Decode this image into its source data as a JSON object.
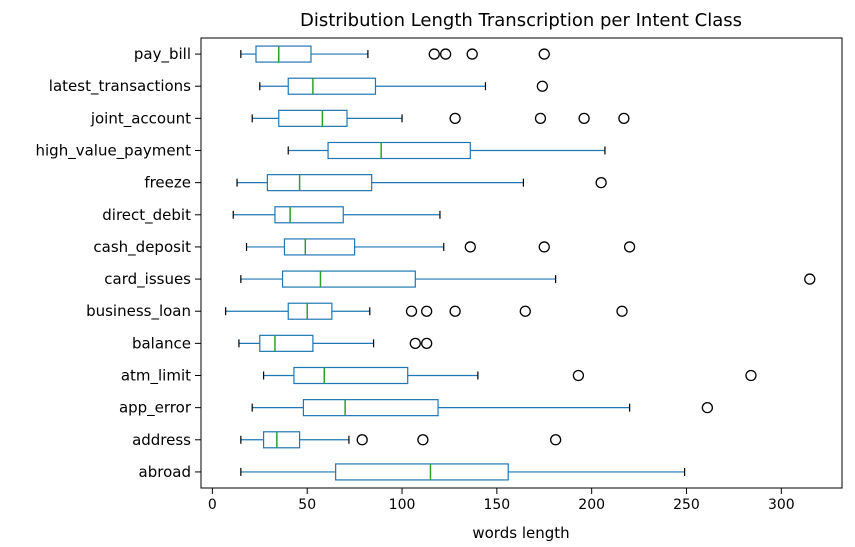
{
  "chart_data": {
    "type": "boxplot",
    "title": "Distribution  Length Transcription per Intent Class",
    "xlabel": "words length",
    "ylabel": "",
    "xlim": [
      -6,
      332
    ],
    "xticks": [
      0,
      50,
      100,
      150,
      200,
      250,
      300
    ],
    "grid": false,
    "categories": [
      "pay_bill",
      "latest_transactions",
      "joint_account",
      "high_value_payment",
      "freeze",
      "direct_debit",
      "cash_deposit",
      "card_issues",
      "business_loan",
      "balance",
      "atm_limit",
      "app_error",
      "address",
      "abroad"
    ],
    "boxes": [
      {
        "label": "pay_bill",
        "whisker_low": 15,
        "q1": 23,
        "median": 35,
        "q3": 52,
        "whisker_high": 82,
        "outliers": [
          117,
          123,
          137,
          175
        ]
      },
      {
        "label": "latest_transactions",
        "whisker_low": 25,
        "q1": 40,
        "median": 53,
        "q3": 86,
        "whisker_high": 144,
        "outliers": [
          174
        ]
      },
      {
        "label": "joint_account",
        "whisker_low": 21,
        "q1": 35,
        "median": 58,
        "q3": 71,
        "whisker_high": 100,
        "outliers": [
          128,
          173,
          196,
          217
        ]
      },
      {
        "label": "high_value_payment",
        "whisker_low": 40,
        "q1": 61,
        "median": 89,
        "q3": 136,
        "whisker_high": 207,
        "outliers": []
      },
      {
        "label": "freeze",
        "whisker_low": 13,
        "q1": 29,
        "median": 46,
        "q3": 84,
        "whisker_high": 164,
        "outliers": [
          205
        ]
      },
      {
        "label": "direct_debit",
        "whisker_low": 11,
        "q1": 33,
        "median": 41,
        "q3": 69,
        "whisker_high": 120,
        "outliers": []
      },
      {
        "label": "cash_deposit",
        "whisker_low": 18,
        "q1": 38,
        "median": 49,
        "q3": 75,
        "whisker_high": 122,
        "outliers": [
          136,
          175,
          220
        ]
      },
      {
        "label": "card_issues",
        "whisker_low": 15,
        "q1": 37,
        "median": 57,
        "q3": 107,
        "whisker_high": 181,
        "outliers": [
          315
        ]
      },
      {
        "label": "business_loan",
        "whisker_low": 7,
        "q1": 40,
        "median": 50,
        "q3": 63,
        "whisker_high": 83,
        "outliers": [
          105,
          113,
          128,
          165,
          216
        ]
      },
      {
        "label": "balance",
        "whisker_low": 14,
        "q1": 25,
        "median": 33,
        "q3": 53,
        "whisker_high": 85,
        "outliers": [
          107,
          113
        ]
      },
      {
        "label": "atm_limit",
        "whisker_low": 27,
        "q1": 43,
        "median": 59,
        "q3": 103,
        "whisker_high": 140,
        "outliers": [
          193,
          284
        ]
      },
      {
        "label": "app_error",
        "whisker_low": 21,
        "q1": 48,
        "median": 70,
        "q3": 119,
        "whisker_high": 220,
        "outliers": [
          261
        ]
      },
      {
        "label": "address",
        "whisker_low": 15,
        "q1": 27,
        "median": 34,
        "q3": 46,
        "whisker_high": 72,
        "outliers": [
          79,
          111,
          181
        ]
      },
      {
        "label": "abroad",
        "whisker_low": 15,
        "q1": 65,
        "median": 115,
        "q3": 156,
        "whisker_high": 249,
        "outliers": []
      }
    ],
    "colors": {
      "box": "#1f77b4",
      "median": "#2ca02c",
      "whisker_cap": "#000000",
      "outlier": "#000000",
      "axes": "#000000"
    }
  }
}
